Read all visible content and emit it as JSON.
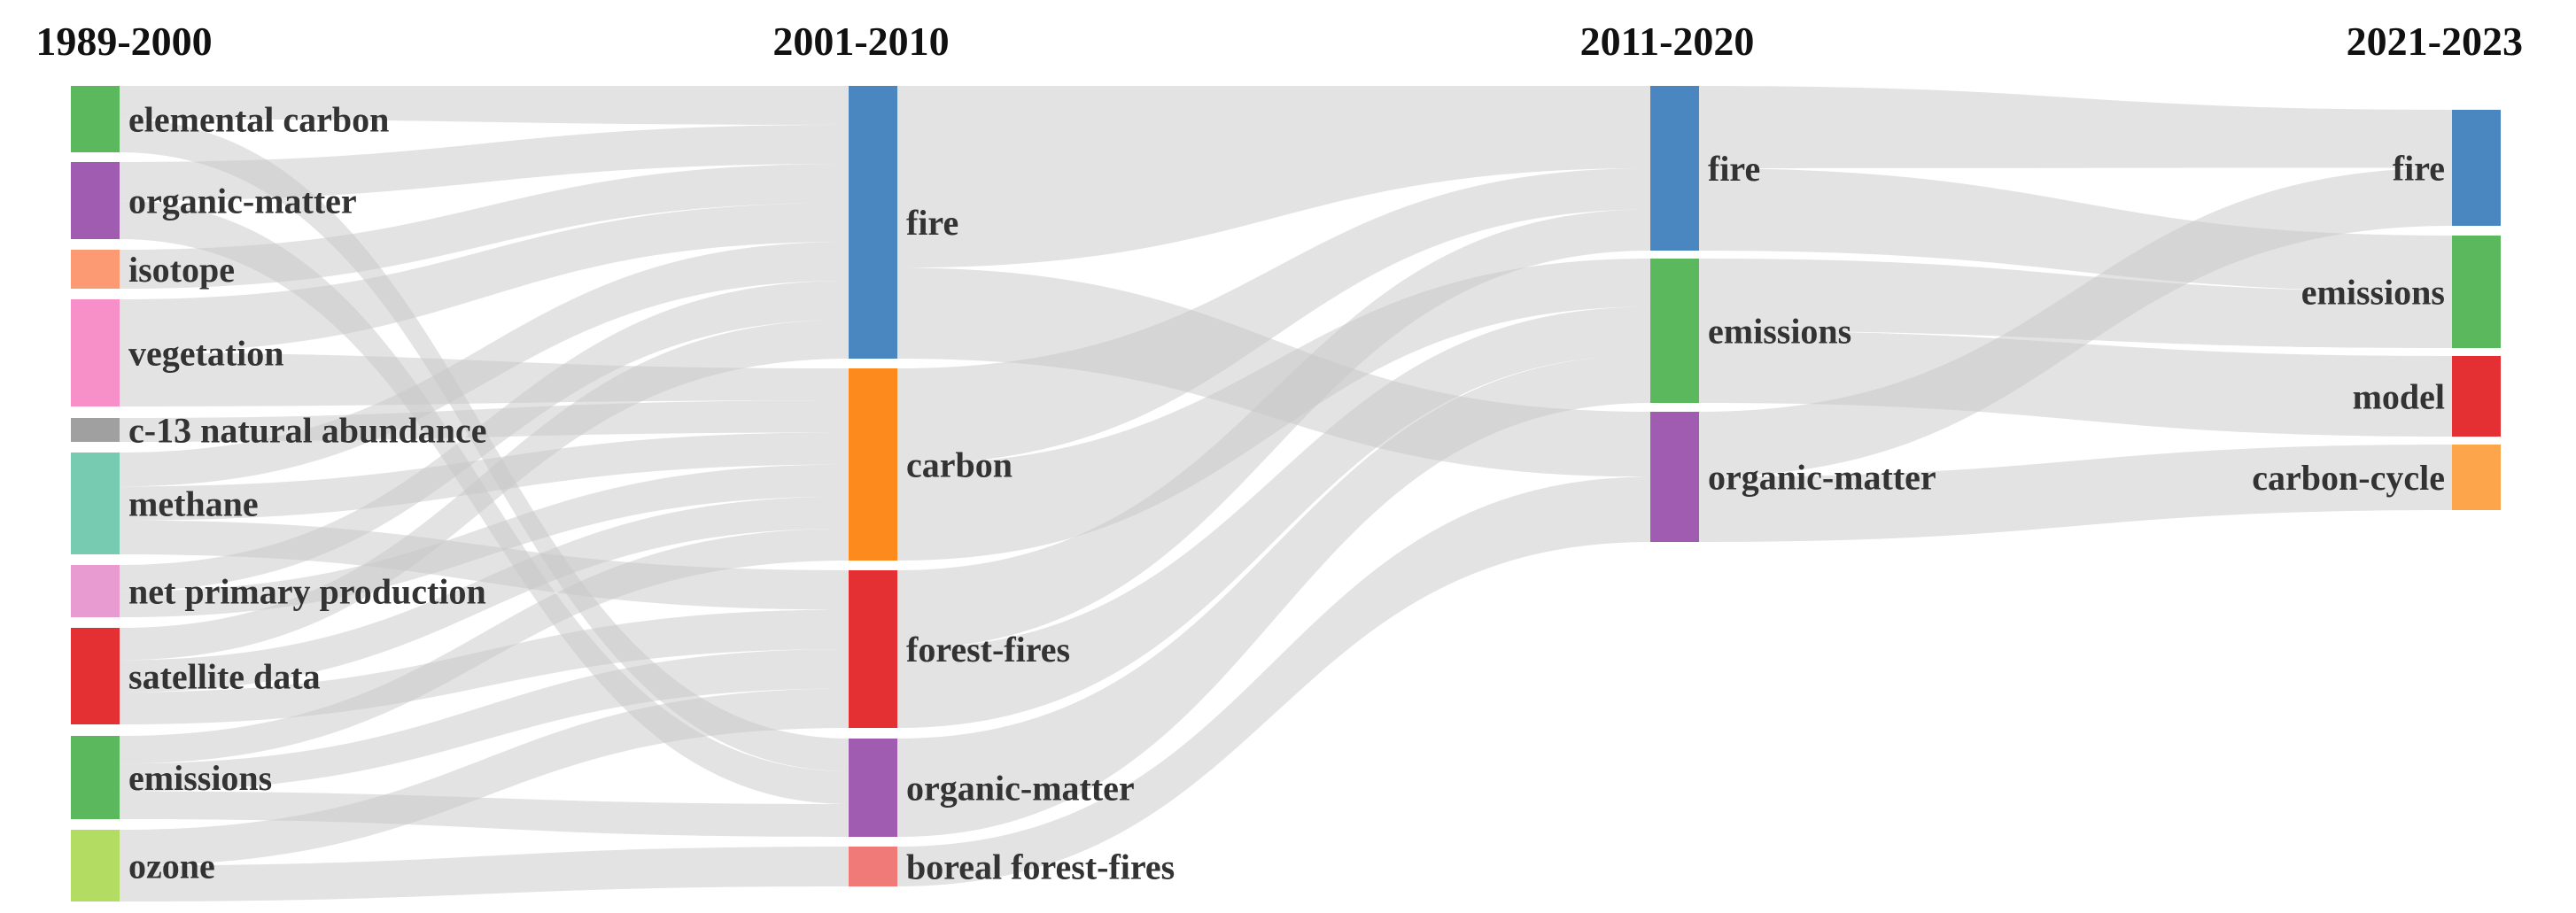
{
  "columns": [
    {
      "title": "1989-2000",
      "nodes": [
        {
          "id": "c0_elemental_carbon",
          "label": "elemental carbon",
          "color": "#5cb85c"
        },
        {
          "id": "c0_organic_matter",
          "label": "organic-matter",
          "color": "#a05cb0"
        },
        {
          "id": "c0_isotope",
          "label": "isotope",
          "color": "#fb9a73"
        },
        {
          "id": "c0_vegetation",
          "label": "vegetation",
          "color": "#f78fc8"
        },
        {
          "id": "c0_c13",
          "label": "c-13 natural abundance",
          "color": "#a0a0a0"
        },
        {
          "id": "c0_methane",
          "label": "methane",
          "color": "#76cbb0"
        },
        {
          "id": "c0_npp",
          "label": "net primary production",
          "color": "#e89bd0"
        },
        {
          "id": "c0_satellite",
          "label": "satellite data",
          "color": "#e53033"
        },
        {
          "id": "c0_emissions",
          "label": "emissions",
          "color": "#5cb85c"
        },
        {
          "id": "c0_ozone",
          "label": "ozone",
          "color": "#b2dc62"
        }
      ]
    },
    {
      "title": "2001-2010",
      "nodes": [
        {
          "id": "c1_fire",
          "label": "fire",
          "color": "#4a87c0"
        },
        {
          "id": "c1_carbon",
          "label": "carbon",
          "color": "#fd8a1c"
        },
        {
          "id": "c1_forest_fires",
          "label": "forest-fires",
          "color": "#e53033"
        },
        {
          "id": "c1_organic_matter",
          "label": "organic-matter",
          "color": "#a05cb0"
        },
        {
          "id": "c1_boreal",
          "label": "boreal forest-fires",
          "color": "#f07a78"
        }
      ]
    },
    {
      "title": "2011-2020",
      "nodes": [
        {
          "id": "c2_fire",
          "label": "fire",
          "color": "#4a87c0"
        },
        {
          "id": "c2_emissions",
          "label": "emissions",
          "color": "#5cb85c"
        },
        {
          "id": "c2_organic_matter",
          "label": "organic-matter",
          "color": "#a05cb0"
        }
      ]
    },
    {
      "title": "2021-2023",
      "nodes": [
        {
          "id": "c3_fire",
          "label": "fire",
          "color": "#4a87c0"
        },
        {
          "id": "c3_emissions",
          "label": "emissions",
          "color": "#5cb85c"
        },
        {
          "id": "c3_model",
          "label": "model",
          "color": "#e53033"
        },
        {
          "id": "c3_carbon_cycle",
          "label": "carbon-cycle",
          "color": "#fda54a"
        }
      ]
    }
  ],
  "links": [
    {
      "source": "c0_elemental_carbon",
      "target": "c1_fire",
      "value": 1
    },
    {
      "source": "c0_elemental_carbon",
      "target": "c1_organic_matter",
      "value": 1
    },
    {
      "source": "c0_organic_matter",
      "target": "c1_fire",
      "value": 1
    },
    {
      "source": "c0_organic_matter",
      "target": "c1_organic_matter",
      "value": 1
    },
    {
      "source": "c0_isotope",
      "target": "c1_fire",
      "value": 1
    },
    {
      "source": "c0_vegetation",
      "target": "c1_fire",
      "value": 1
    },
    {
      "source": "c0_vegetation",
      "target": "c1_carbon",
      "value": 1
    },
    {
      "source": "c0_c13",
      "target": "c1_carbon",
      "value": 1
    },
    {
      "source": "c0_methane",
      "target": "c1_fire",
      "value": 1
    },
    {
      "source": "c0_methane",
      "target": "c1_carbon",
      "value": 1
    },
    {
      "source": "c0_methane",
      "target": "c1_forest_fires",
      "value": 1
    },
    {
      "source": "c0_npp",
      "target": "c1_fire",
      "value": 1
    },
    {
      "source": "c0_npp",
      "target": "c1_carbon",
      "value": 1
    },
    {
      "source": "c0_satellite",
      "target": "c1_fire",
      "value": 1
    },
    {
      "source": "c0_satellite",
      "target": "c1_carbon",
      "value": 1
    },
    {
      "source": "c0_satellite",
      "target": "c1_forest_fires",
      "value": 1
    },
    {
      "source": "c0_emissions",
      "target": "c1_carbon",
      "value": 1
    },
    {
      "source": "c0_emissions",
      "target": "c1_forest_fires",
      "value": 1
    },
    {
      "source": "c0_emissions",
      "target": "c1_organic_matter",
      "value": 1
    },
    {
      "source": "c0_ozone",
      "target": "c1_forest_fires",
      "value": 1
    },
    {
      "source": "c0_ozone",
      "target": "c1_boreal",
      "value": 1
    },
    {
      "source": "c1_fire",
      "target": "c2_fire",
      "value": 2
    },
    {
      "source": "c1_fire",
      "target": "c2_organic_matter",
      "value": 1
    },
    {
      "source": "c1_carbon",
      "target": "c2_fire",
      "value": 1
    },
    {
      "source": "c1_carbon",
      "target": "c2_emissions",
      "value": 1
    },
    {
      "source": "c1_forest_fires",
      "target": "c2_fire",
      "value": 1
    },
    {
      "source": "c1_forest_fires",
      "target": "c2_emissions",
      "value": 1
    },
    {
      "source": "c1_organic_matter",
      "target": "c2_emissions",
      "value": 1
    },
    {
      "source": "c1_boreal",
      "target": "c2_organic_matter",
      "value": 1
    },
    {
      "source": "c2_fire",
      "target": "c3_fire",
      "value": 1
    },
    {
      "source": "c2_fire",
      "target": "c3_emissions",
      "value": 1
    },
    {
      "source": "c2_emissions",
      "target": "c3_emissions",
      "value": 1
    },
    {
      "source": "c2_emissions",
      "target": "c3_model",
      "value": 1
    },
    {
      "source": "c2_organic_matter",
      "target": "c3_fire",
      "value": 1
    },
    {
      "source": "c2_organic_matter",
      "target": "c3_carbon_cycle",
      "value": 1
    }
  ]
}
